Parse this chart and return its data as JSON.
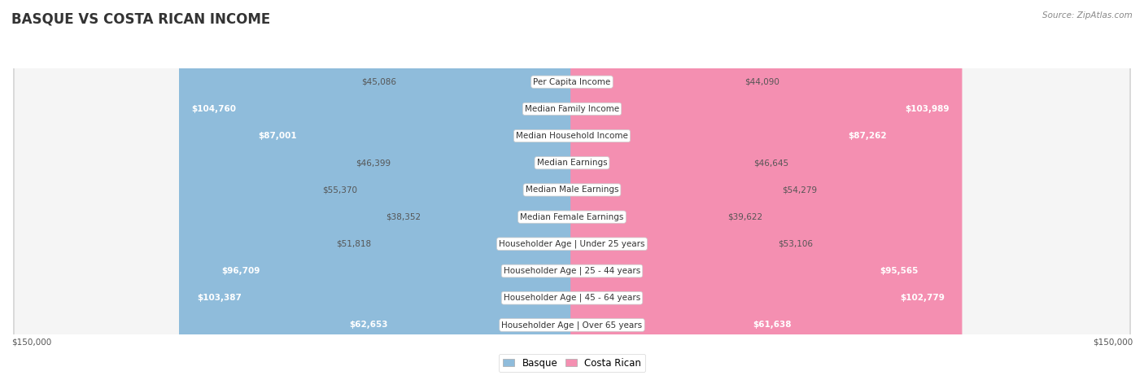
{
  "title": "BASQUE VS COSTA RICAN INCOME",
  "source": "Source: ZipAtlas.com",
  "categories": [
    "Per Capita Income",
    "Median Family Income",
    "Median Household Income",
    "Median Earnings",
    "Median Male Earnings",
    "Median Female Earnings",
    "Householder Age | Under 25 years",
    "Householder Age | 25 - 44 years",
    "Householder Age | 45 - 64 years",
    "Householder Age | Over 65 years"
  ],
  "basque_values": [
    45086,
    104760,
    87001,
    46399,
    55370,
    38352,
    51818,
    96709,
    103387,
    62653
  ],
  "costa_rican_values": [
    44090,
    103989,
    87262,
    46645,
    54279,
    39622,
    53106,
    95565,
    102779,
    61638
  ],
  "basque_labels": [
    "$45,086",
    "$104,760",
    "$87,001",
    "$46,399",
    "$55,370",
    "$38,352",
    "$51,818",
    "$96,709",
    "$103,387",
    "$62,653"
  ],
  "costa_rican_labels": [
    "$44,090",
    "$103,989",
    "$87,262",
    "$46,645",
    "$54,279",
    "$39,622",
    "$53,106",
    "$95,565",
    "$102,779",
    "$61,638"
  ],
  "basque_color": "#8fbcdb",
  "costa_rican_color": "#f48fb1",
  "row_bg_color": "#f5f5f5",
  "row_border_color": "#d8d8d8",
  "max_value": 150000,
  "title_fontsize": 12,
  "label_fontsize": 7.5,
  "category_fontsize": 7.5,
  "background_color": "#ffffff",
  "large_threshold": 60000
}
